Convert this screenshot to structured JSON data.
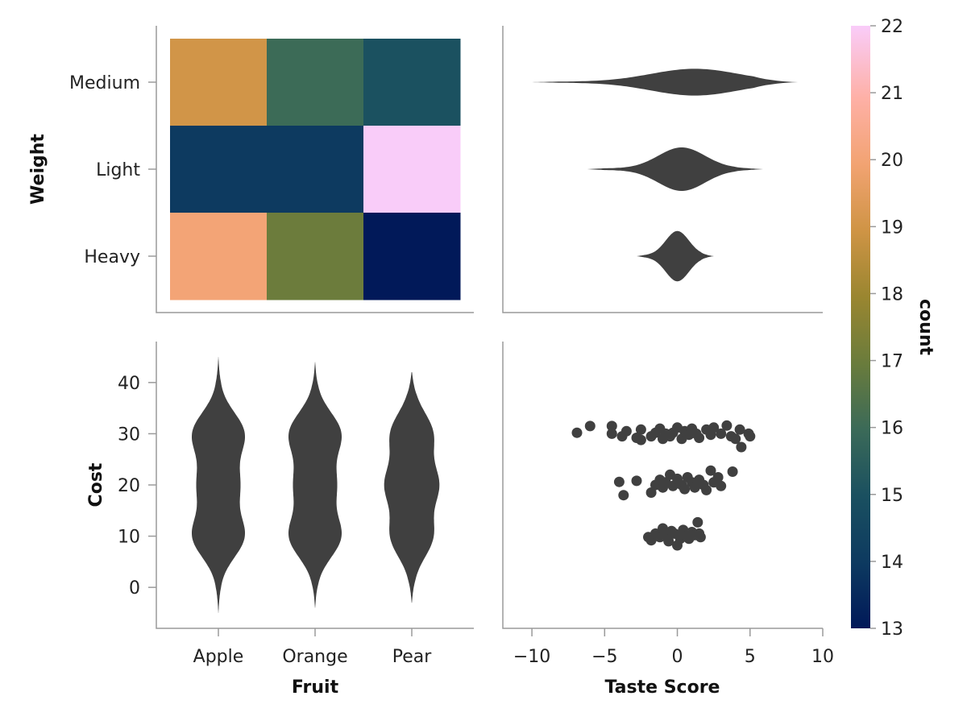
{
  "chart_data": [
    {
      "type": "heatmap",
      "xlabel": "",
      "ylabel": "Weight",
      "categories_x": [
        "Apple",
        "Orange",
        "Pear"
      ],
      "categories_y": [
        "Medium",
        "Light",
        "Heavy"
      ],
      "values": [
        [
          19,
          16,
          15
        ],
        [
          14,
          14,
          22
        ],
        [
          20,
          17,
          13
        ]
      ]
    },
    {
      "type": "violin",
      "orientation": "horizontal",
      "xlabel": "",
      "ylabel": "",
      "categories": [
        "Medium",
        "Light",
        "Heavy"
      ],
      "series": [
        {
          "category": "Medium",
          "extent": [
            -10,
            8.3
          ],
          "center": 1.2,
          "spread": 3.0
        },
        {
          "category": "Light",
          "extent": [
            -6.2,
            5.9
          ],
          "center": 0.3,
          "spread": 1.6
        },
        {
          "category": "Heavy",
          "extent": [
            -2.8,
            2.5
          ],
          "center": 0.0,
          "spread": 0.8
        }
      ],
      "xlim": [
        -12,
        10
      ]
    },
    {
      "type": "violin",
      "orientation": "vertical",
      "xlabel": "Fruit",
      "ylabel": "Cost",
      "categories": [
        "Apple",
        "Orange",
        "Pear"
      ],
      "series": [
        {
          "category": "Apple",
          "extent": [
            -5,
            45
          ],
          "modes": [
            10,
            20,
            30
          ]
        },
        {
          "category": "Orange",
          "extent": [
            -4,
            44
          ],
          "modes": [
            10,
            20,
            30
          ]
        },
        {
          "category": "Pear",
          "extent": [
            -3,
            42
          ],
          "modes": [
            10,
            20,
            30
          ]
        }
      ],
      "yticks": [
        0,
        10,
        20,
        30,
        40
      ],
      "ylim": [
        -8,
        48
      ]
    },
    {
      "type": "scatter",
      "xlabel": "Taste Score",
      "ylabel": "",
      "xticks": [
        -10,
        -5,
        0,
        5,
        10
      ],
      "xlim": [
        -12,
        10
      ],
      "ylim": [
        -8,
        48
      ],
      "points": [
        [
          -6.9,
          30.2
        ],
        [
          -6.0,
          31.5
        ],
        [
          -4.5,
          31.5
        ],
        [
          -4.5,
          30.0
        ],
        [
          -3.8,
          29.5
        ],
        [
          -3.5,
          30.5
        ],
        [
          -2.8,
          29.2
        ],
        [
          -2.5,
          30.8
        ],
        [
          -2.5,
          28.8
        ],
        [
          -1.8,
          29.5
        ],
        [
          -1.5,
          30.2
        ],
        [
          -1.2,
          31.0
        ],
        [
          -1.0,
          29.0
        ],
        [
          -0.8,
          30.0
        ],
        [
          -0.5,
          29.5
        ],
        [
          -0.3,
          30.2
        ],
        [
          0.0,
          31.2
        ],
        [
          0.3,
          29.0
        ],
        [
          0.5,
          30.5
        ],
        [
          0.8,
          29.8
        ],
        [
          1.0,
          31.0
        ],
        [
          1.3,
          30.0
        ],
        [
          1.5,
          29.2
        ],
        [
          2.0,
          30.8
        ],
        [
          2.3,
          29.8
        ],
        [
          2.5,
          31.2
        ],
        [
          3.0,
          30.0
        ],
        [
          3.4,
          31.6
        ],
        [
          3.7,
          29.5
        ],
        [
          4.0,
          29.0
        ],
        [
          4.3,
          30.8
        ],
        [
          4.4,
          27.4
        ],
        [
          4.9,
          30.0
        ],
        [
          5.0,
          29.5
        ],
        [
          -4.0,
          20.6
        ],
        [
          -3.7,
          18.0
        ],
        [
          -2.8,
          20.8
        ],
        [
          -1.8,
          18.5
        ],
        [
          -1.5,
          20.0
        ],
        [
          -1.2,
          21.0
        ],
        [
          -1.0,
          19.5
        ],
        [
          -0.8,
          20.5
        ],
        [
          -0.5,
          22.0
        ],
        [
          -0.3,
          19.8
        ],
        [
          0.0,
          21.2
        ],
        [
          0.3,
          20.0
        ],
        [
          0.5,
          19.2
        ],
        [
          0.7,
          21.5
        ],
        [
          1.0,
          20.5
        ],
        [
          1.2,
          19.5
        ],
        [
          1.5,
          21.0
        ],
        [
          1.8,
          20.0
        ],
        [
          2.0,
          19.0
        ],
        [
          2.3,
          22.8
        ],
        [
          2.5,
          20.5
        ],
        [
          2.8,
          21.5
        ],
        [
          3.0,
          19.8
        ],
        [
          3.8,
          22.6
        ],
        [
          -2.0,
          9.8
        ],
        [
          -1.8,
          9.2
        ],
        [
          -1.5,
          10.5
        ],
        [
          -1.2,
          9.8
        ],
        [
          -1.0,
          11.5
        ],
        [
          -0.8,
          10.2
        ],
        [
          -0.6,
          9.0
        ],
        [
          -0.4,
          11.0
        ],
        [
          -0.2,
          10.5
        ],
        [
          0.0,
          8.2
        ],
        [
          0.2,
          9.5
        ],
        [
          0.4,
          11.2
        ],
        [
          0.6,
          10.0
        ],
        [
          0.8,
          9.5
        ],
        [
          1.0,
          10.8
        ],
        [
          1.2,
          10.2
        ],
        [
          1.4,
          12.7
        ],
        [
          1.6,
          9.8
        ],
        [
          1.5,
          10.5
        ]
      ]
    },
    {
      "type": "colorbar",
      "label": "count",
      "range": [
        13,
        22
      ],
      "ticks": [
        13,
        14,
        15,
        16,
        17,
        18,
        19,
        20,
        21,
        22
      ],
      "colormap": "batlow"
    }
  ],
  "labels": {
    "weight": "Weight",
    "cost": "Cost",
    "fruit": "Fruit",
    "taste_score": "Taste Score",
    "count": "count"
  },
  "colors": {
    "mark": "#404040",
    "axis": "#9a9a9a"
  }
}
